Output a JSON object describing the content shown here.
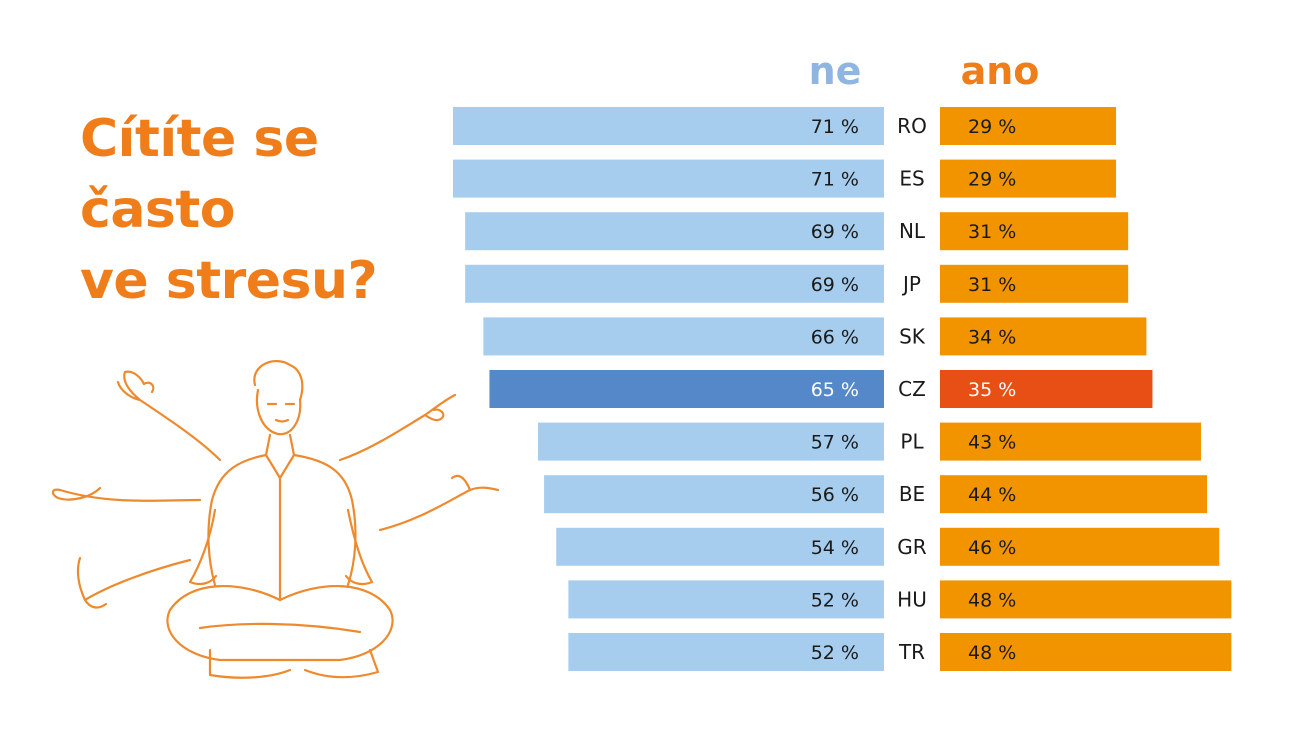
{
  "title_lines": [
    "Cítíte se",
    "často",
    "ve stresu?"
  ],
  "colors": {
    "title": "#ef7d1a",
    "ne": "#a6cdee",
    "ne_highlight": "#5588c8",
    "ano": "#f29400",
    "ano_highlight": "#e74f14",
    "legend_ne": "#8fb6e0",
    "legend_ano": "#ef7d1a",
    "illustration_stroke": "#ee8a2e"
  },
  "chart_data": {
    "type": "bar",
    "legend": [
      "ne",
      "ano"
    ],
    "categories": [
      "RO",
      "ES",
      "NL",
      "JP",
      "SK",
      "CZ",
      "PL",
      "BE",
      "GR",
      "HU",
      "TR"
    ],
    "series": [
      {
        "name": "ne",
        "values": [
          71,
          71,
          69,
          69,
          66,
          65,
          57,
          56,
          54,
          52,
          52
        ]
      },
      {
        "name": "ano",
        "values": [
          29,
          29,
          31,
          31,
          34,
          35,
          43,
          44,
          46,
          48,
          48
        ]
      }
    ],
    "value_labels": {
      "ne": [
        "71 %",
        "71 %",
        "69 %",
        "69 %",
        "66 %",
        "65 %",
        "57 %",
        "56 %",
        "54 %",
        "52 %",
        "52 %"
      ],
      "ano": [
        "29 %",
        "29 %",
        "31 %",
        "31 %",
        "34 %",
        "35 %",
        "43 %",
        "44 %",
        "46 %",
        "48 %",
        "48 %"
      ]
    },
    "highlight": "CZ",
    "unit": "%"
  }
}
